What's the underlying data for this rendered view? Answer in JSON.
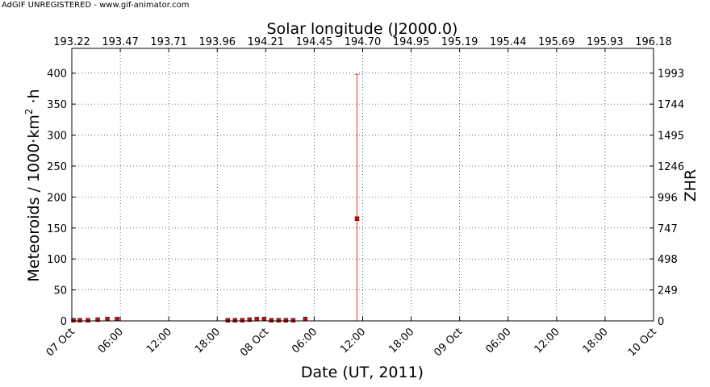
{
  "watermark": "AdGIF UNREGISTERED - www.gif-animator.com",
  "chart_data": {
    "type": "scatter",
    "title": "",
    "xlabel": "Date (UT, 2011)",
    "ylabel_main": "Meteoroids / 1000·km",
    "ylabel_sup": "2",
    "ylabel_tail": " ·h",
    "x2label": "Solar longitude (J2000.0)",
    "y2label": "ZHR",
    "xlim_hours": [
      0,
      72
    ],
    "ylim": [
      0,
      440
    ],
    "grid": true,
    "x_ticks": [
      {
        "h": 0,
        "label": "07 Oct",
        "major": true
      },
      {
        "h": 6,
        "label": "06:00",
        "major": false
      },
      {
        "h": 12,
        "label": "12:00",
        "major": false
      },
      {
        "h": 18,
        "label": "18:00",
        "major": false
      },
      {
        "h": 24,
        "label": "08 Oct",
        "major": true
      },
      {
        "h": 30,
        "label": "06:00",
        "major": false
      },
      {
        "h": 36,
        "label": "12:00",
        "major": false
      },
      {
        "h": 42,
        "label": "18:00",
        "major": false
      },
      {
        "h": 48,
        "label": "09 Oct",
        "major": true
      },
      {
        "h": 54,
        "label": "06:00",
        "major": false
      },
      {
        "h": 60,
        "label": "12:00",
        "major": false
      },
      {
        "h": 66,
        "label": "18:00",
        "major": false
      },
      {
        "h": 72,
        "label": "10 Oct",
        "major": true
      }
    ],
    "x2_ticks": [
      "193.22",
      "193.47",
      "193.71",
      "193.96",
      "194.21",
      "194.45",
      "194.70",
      "194.95",
      "195.19",
      "195.44",
      "195.69",
      "195.93",
      "196.18"
    ],
    "y_ticks": [
      0,
      50,
      100,
      150,
      200,
      250,
      300,
      350,
      400
    ],
    "y2_ticks": [
      "0",
      "249",
      "498",
      "747",
      "996",
      "1246",
      "1495",
      "1744",
      "1993"
    ],
    "points": [
      {
        "h": 0.2,
        "y": 1
      },
      {
        "h": 1.0,
        "y": 1
      },
      {
        "h": 2.0,
        "y": 1
      },
      {
        "h": 3.2,
        "y": 2
      },
      {
        "h": 4.4,
        "y": 3
      },
      {
        "h": 5.6,
        "y": 3
      },
      {
        "h": 19.3,
        "y": 1
      },
      {
        "h": 20.2,
        "y": 1
      },
      {
        "h": 21.1,
        "y": 1
      },
      {
        "h": 22.0,
        "y": 2
      },
      {
        "h": 22.9,
        "y": 3
      },
      {
        "h": 23.8,
        "y": 3
      },
      {
        "h": 24.7,
        "y": 1
      },
      {
        "h": 25.6,
        "y": 1
      },
      {
        "h": 26.5,
        "y": 1
      },
      {
        "h": 27.4,
        "y": 1
      },
      {
        "h": 28.9,
        "y": 3
      },
      {
        "h": 35.3,
        "y": 165,
        "err_low": 0,
        "err_high": 398
      }
    ]
  }
}
